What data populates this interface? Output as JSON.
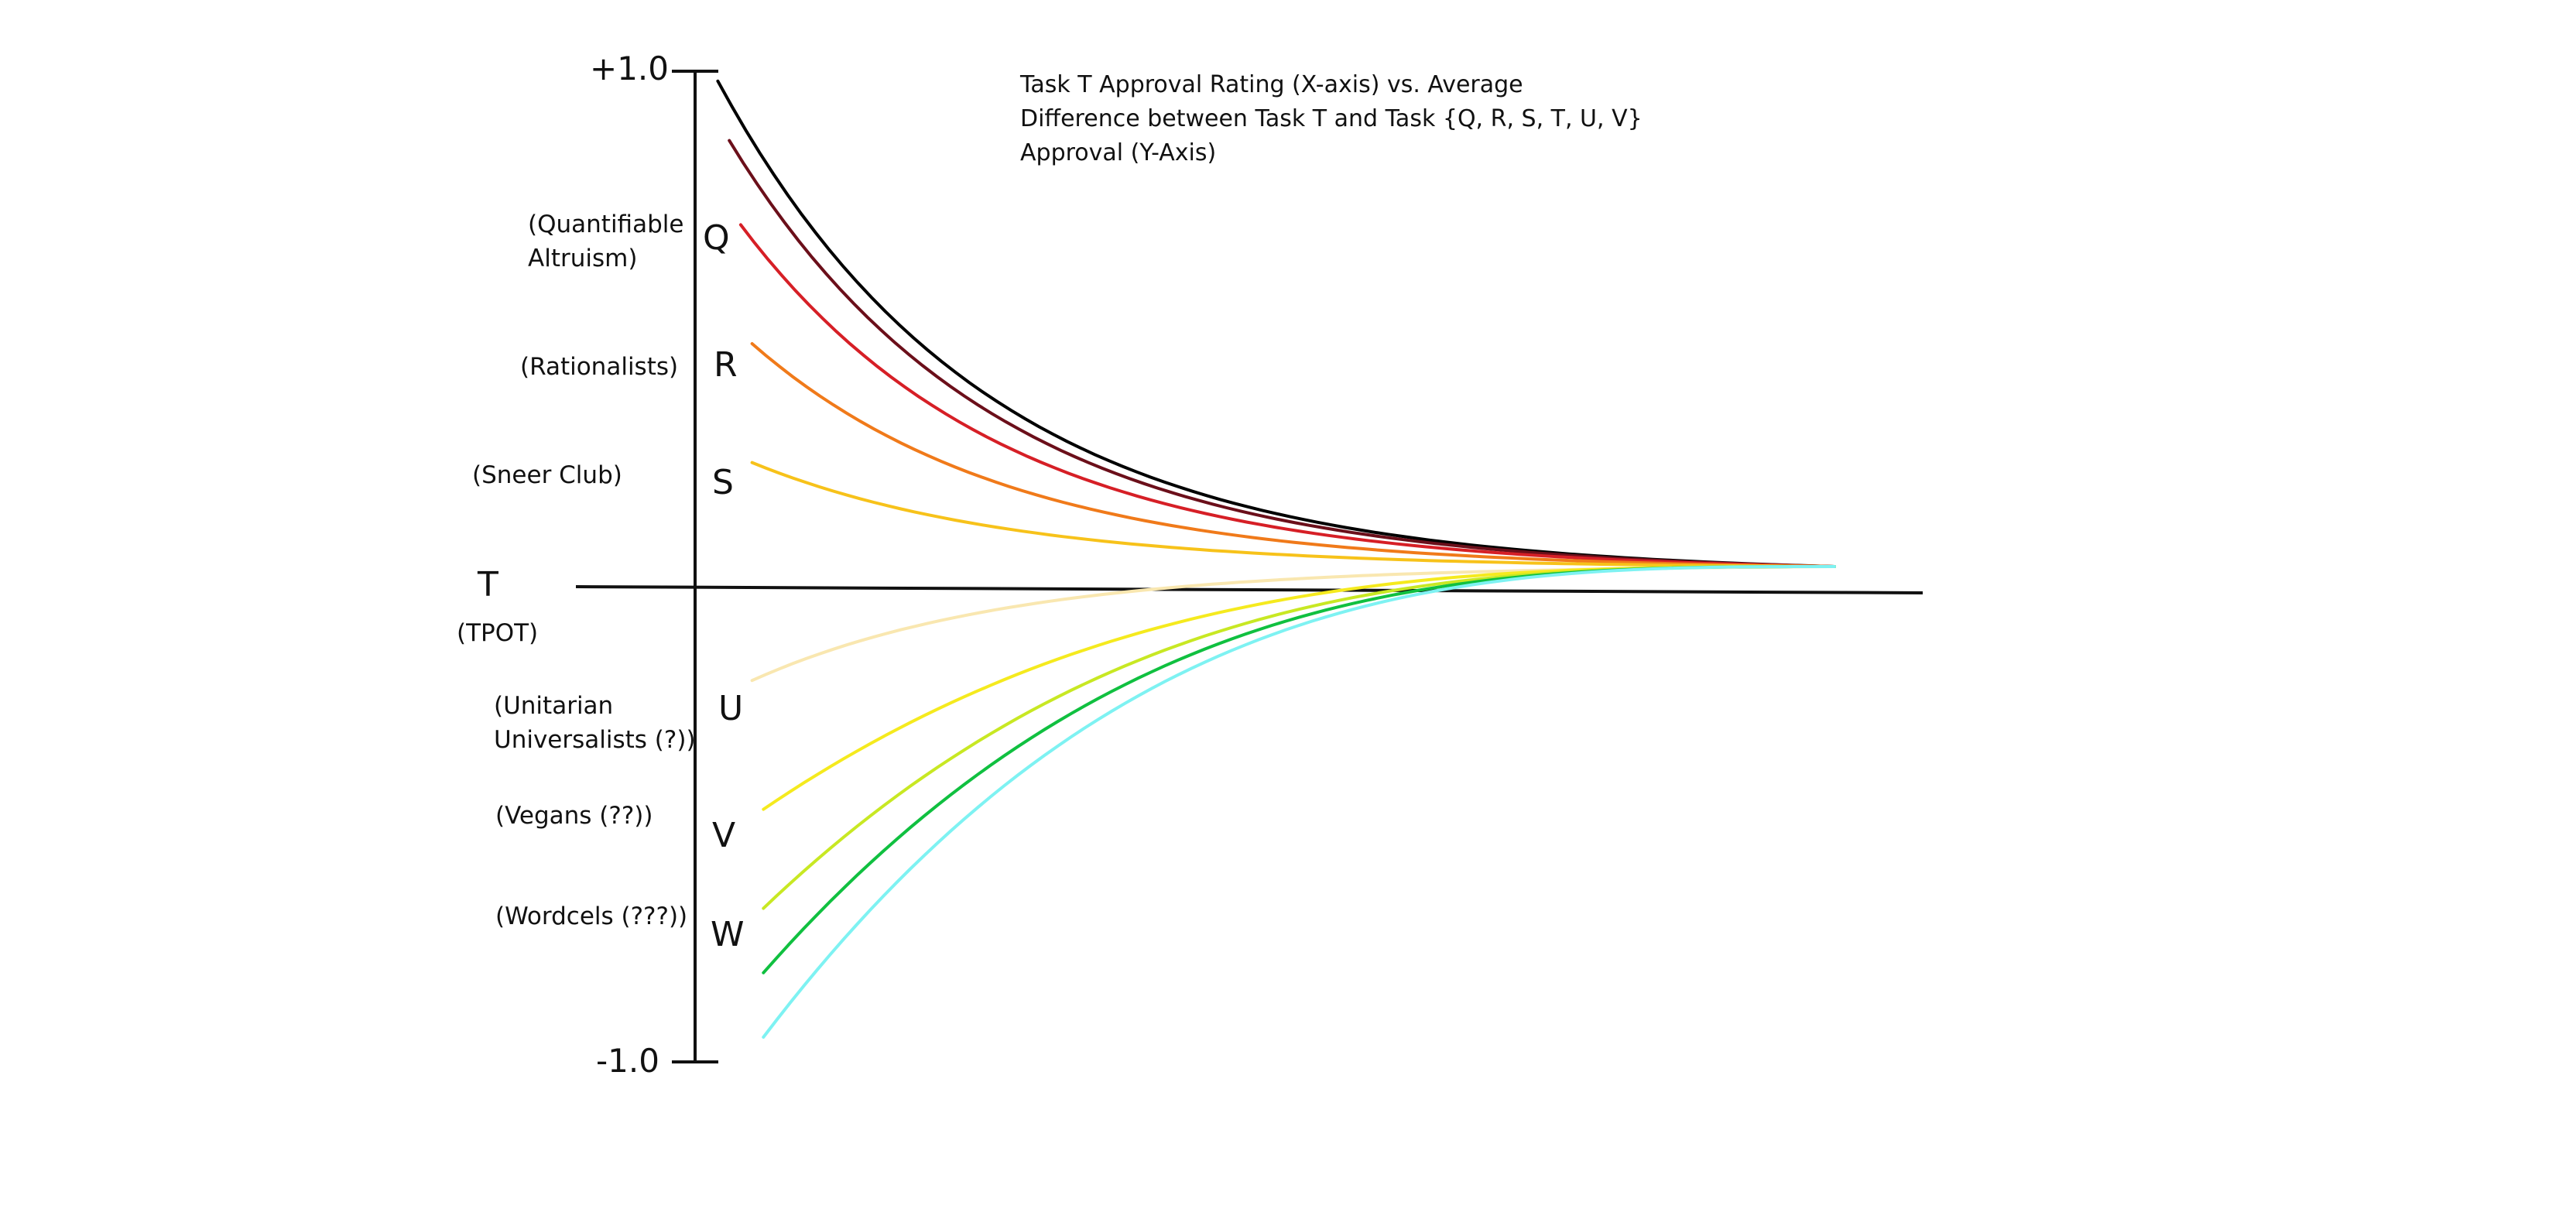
{
  "chart_data": {
    "type": "line",
    "title_lines": [
      "Task T Approval Rating (X-axis) vs. Average",
      "Difference between Task T and Task {Q, R, S, T, U, V}",
      "Approval (Y-Axis)"
    ],
    "ylim": [
      -1.0,
      1.0
    ],
    "y_tick_labels": [
      "+1.0",
      "-1.0"
    ],
    "reference_label": {
      "letter": "T",
      "name": "(TPOT)"
    },
    "group_labels": [
      {
        "letter": "Q",
        "name_lines": [
          "(Quantifiable",
          "Altruism)"
        ]
      },
      {
        "letter": "R",
        "name_lines": [
          "(Rationalists)"
        ]
      },
      {
        "letter": "S",
        "name_lines": [
          "(Sneer Club)"
        ]
      },
      {
        "letter": "U",
        "name_lines": [
          "(Unitarian",
          "Universalists (?))"
        ]
      },
      {
        "letter": "V",
        "name_lines": [
          "(Vegans (??))"
        ]
      },
      {
        "letter": "W",
        "name_lines": [
          "(Wordcels (???))"
        ]
      }
    ],
    "series": [
      {
        "color": "#000000",
        "start_x": 0.02,
        "start_y": 0.98,
        "shape": "decay"
      },
      {
        "color": "#6b0f1a",
        "start_x": 0.03,
        "start_y": 0.86,
        "shape": "decay"
      },
      {
        "color": "#d61f26",
        "start_x": 0.04,
        "start_y": 0.69,
        "shape": "decay"
      },
      {
        "color": "#f07a1a",
        "start_x": 0.05,
        "start_y": 0.45,
        "shape": "decay"
      },
      {
        "color": "#f7c21a",
        "start_x": 0.05,
        "start_y": 0.21,
        "shape": "decay"
      },
      {
        "color": "#f9e7b0",
        "start_x": 0.05,
        "start_y": -0.23,
        "shape": "decay"
      },
      {
        "color": "#f5ea1e",
        "start_x": 0.06,
        "start_y": -0.49,
        "shape": "sigmoid"
      },
      {
        "color": "#c8e823",
        "start_x": 0.06,
        "start_y": -0.69,
        "shape": "sigmoid"
      },
      {
        "color": "#10c040",
        "start_x": 0.06,
        "start_y": -0.82,
        "shape": "sigmoid"
      },
      {
        "color": "#7ef2f2",
        "start_x": 0.06,
        "start_y": -0.95,
        "shape": "sigmoid"
      }
    ],
    "grid": false
  }
}
